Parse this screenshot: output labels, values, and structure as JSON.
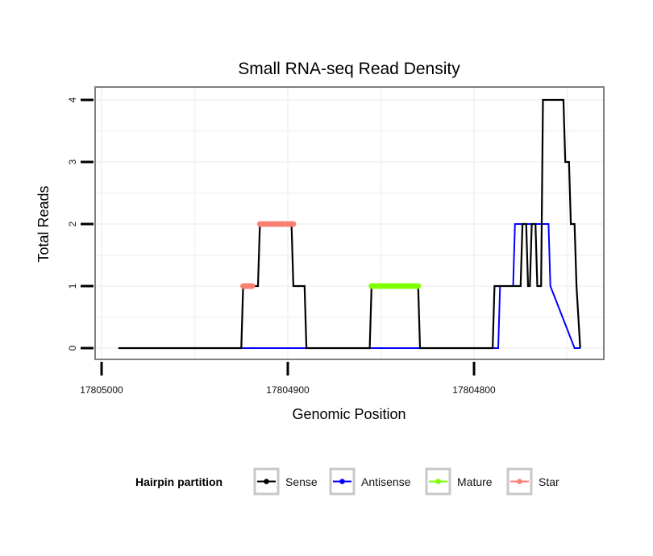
{
  "chart_data": {
    "type": "line",
    "title": "Small RNA-seq Read Density",
    "xlabel": "Genomic Position",
    "ylabel": "Total Reads",
    "x_reversed": true,
    "xlim": [
      17805009,
      17804729
    ],
    "ylim": [
      -0.2,
      4.2
    ],
    "x_ticks": [
      17805000,
      17804900,
      17804800
    ],
    "x_tick_labels": [
      "17805000",
      "17804900",
      "17804800"
    ],
    "y_ticks": [
      0,
      1,
      2,
      3,
      4
    ],
    "y_tick_labels": [
      "0",
      "1",
      "2",
      "3",
      "4"
    ],
    "grid": true,
    "legend": {
      "title": "Hairpin partition",
      "position": "bottom",
      "entries": [
        {
          "label": "Sense",
          "color": "#000000"
        },
        {
          "label": "Antisense",
          "color": "#0000ff"
        },
        {
          "label": "Mature",
          "color": "#7fff00"
        },
        {
          "label": "Star",
          "color": "#fa8072"
        }
      ]
    },
    "series": [
      {
        "name": "Sense",
        "color": "#000000",
        "x": [
          17804991,
          17804925,
          17804924,
          17804916,
          17804915,
          17804898,
          17804897,
          17804891,
          17804890,
          17804856,
          17804855,
          17804830,
          17804829,
          17804790,
          17804789,
          17804775,
          17804774,
          17804772,
          17804771,
          17804770,
          17804769,
          17804767,
          17804766,
          17804764,
          17804763,
          17804752,
          17804751,
          17804749,
          17804748,
          17804746,
          17804745,
          17804743
        ],
        "values": [
          0,
          0,
          1,
          1,
          2,
          2,
          1,
          1,
          0,
          0,
          1,
          1,
          0,
          0,
          1,
          1,
          2,
          2,
          1,
          1,
          2,
          2,
          1,
          1,
          4,
          4,
          3,
          3,
          2,
          2,
          1,
          0
        ]
      },
      {
        "name": "Antisense",
        "color": "#0000ff",
        "x": [
          17804925,
          17804890,
          17804856,
          17804829,
          17804787,
          17804786,
          17804779,
          17804778,
          17804760,
          17804759,
          17804746,
          17804743
        ],
        "values": [
          0,
          0,
          0,
          0,
          0,
          1,
          1,
          2,
          2,
          1,
          0,
          0
        ]
      },
      {
        "name": "Mature",
        "color": "#7fff00",
        "x": [
          17804855,
          17804830
        ],
        "values": [
          1,
          1
        ]
      },
      {
        "name": "Star",
        "color": "#fa8072",
        "segments": [
          {
            "x": [
              17804924,
              17804919
            ],
            "values": [
              1,
              1
            ]
          },
          {
            "x": [
              17804915,
              17804897
            ],
            "values": [
              2,
              2
            ]
          }
        ]
      }
    ]
  }
}
